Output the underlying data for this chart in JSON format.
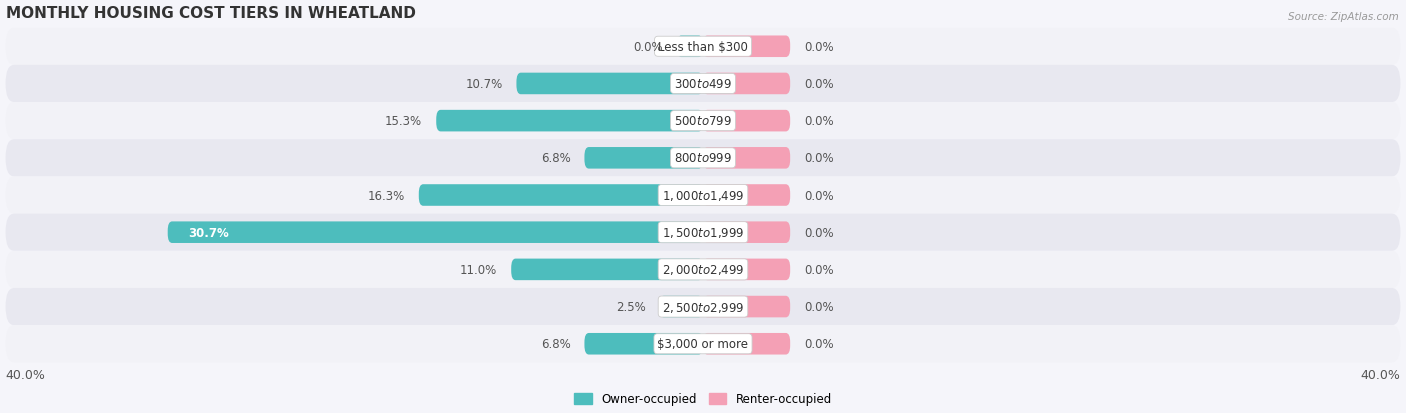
{
  "title": "MONTHLY HOUSING COST TIERS IN WHEATLAND",
  "source": "Source: ZipAtlas.com",
  "categories": [
    "Less than $300",
    "$300 to $499",
    "$500 to $799",
    "$800 to $999",
    "$1,000 to $1,499",
    "$1,500 to $1,999",
    "$2,000 to $2,499",
    "$2,500 to $2,999",
    "$3,000 or more"
  ],
  "owner_values": [
    0.0,
    10.7,
    15.3,
    6.8,
    16.3,
    30.7,
    11.0,
    2.5,
    6.8
  ],
  "renter_values": [
    0.0,
    0.0,
    0.0,
    0.0,
    0.0,
    0.0,
    0.0,
    0.0,
    0.0
  ],
  "owner_color": "#4dbdbd",
  "renter_color": "#f4a0b5",
  "label_color_dark": "#555555",
  "label_color_white": "#ffffff",
  "row_bg_even": "#f2f2f7",
  "row_bg_odd": "#e8e8f0",
  "xlim": 40.0,
  "renter_stub": 5.0,
  "bar_height": 0.58,
  "font_size_title": 11,
  "font_size_labels": 8.5,
  "font_size_axis": 9
}
